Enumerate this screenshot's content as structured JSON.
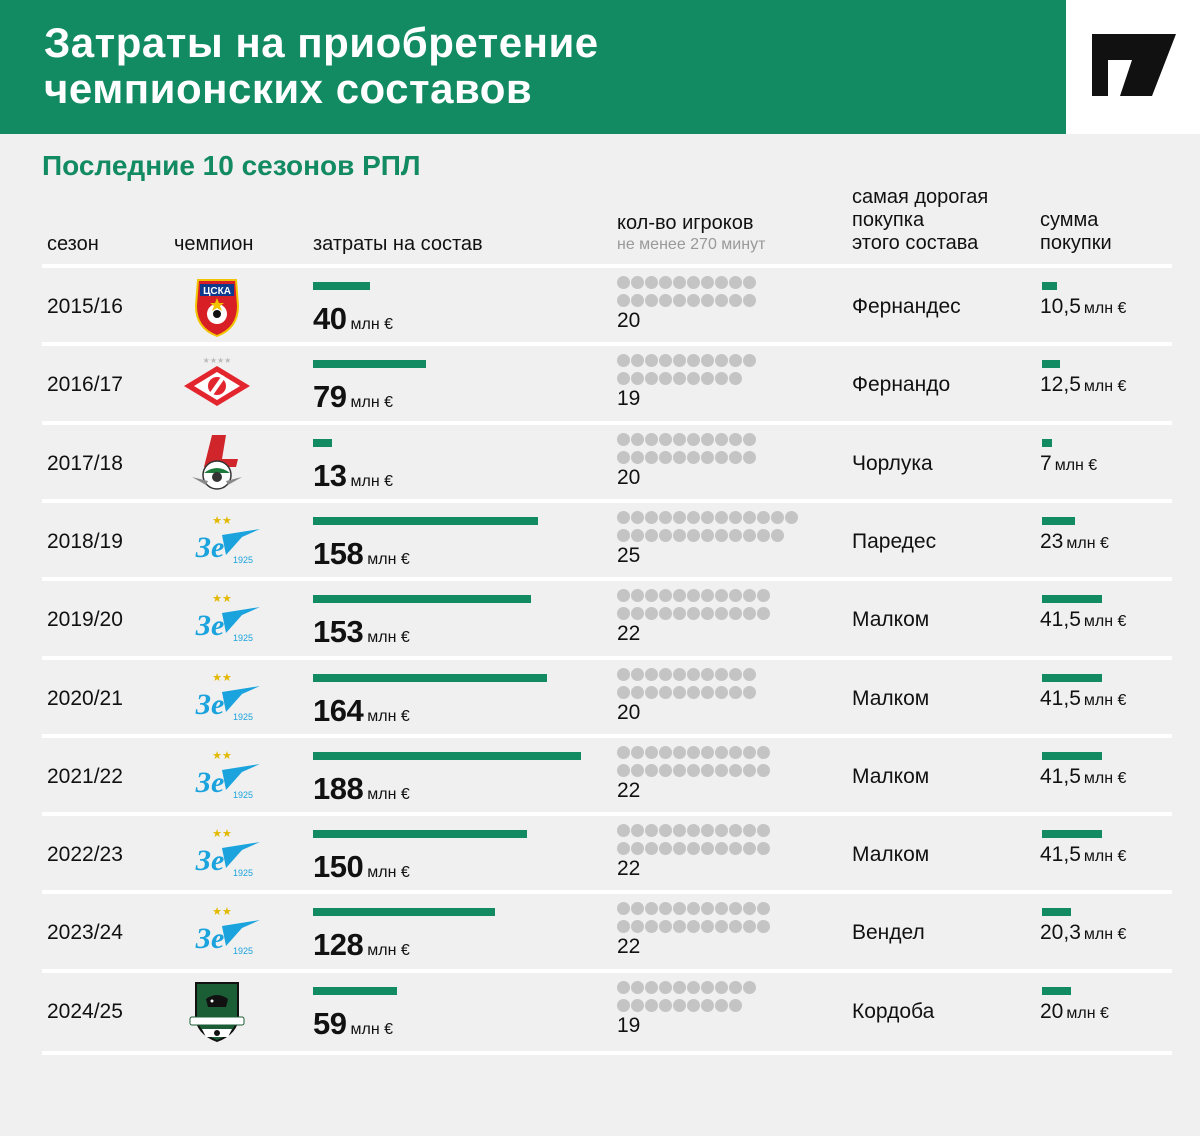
{
  "header": {
    "title_line1": "Затраты на приобретение",
    "title_line2": "чемпионских составов",
    "subtitle": "Последние 10 сезонов РПЛ"
  },
  "columns": {
    "season": "сезон",
    "champion": "чемпион",
    "spend": "затраты на состав",
    "players": "кол-во игроков",
    "players_note": "не менее 270 минут",
    "top_line1": "самая дорогая",
    "top_line2": "покупка",
    "top_line3": "этого состава",
    "sum_line1": "сумма",
    "sum_line2": "покупки"
  },
  "chart_data": {
    "type": "table",
    "unit": "млн €",
    "rows": [
      {
        "season": "2015/16",
        "champion_logo": "cska-logo",
        "spend": 40,
        "spend_label": "40",
        "players": 20,
        "top_name": "Фернандес",
        "top_sum": 10.5,
        "top_sum_label": "10,5"
      },
      {
        "season": "2016/17",
        "champion_logo": "spartak-logo",
        "spend": 79,
        "spend_label": "79",
        "players": 19,
        "top_name": "Фернандо",
        "top_sum": 12.5,
        "top_sum_label": "12,5"
      },
      {
        "season": "2017/18",
        "champion_logo": "lokomotiv-logo",
        "spend": 13,
        "spend_label": "13",
        "players": 20,
        "top_name": "Чорлука",
        "top_sum": 7,
        "top_sum_label": "7"
      },
      {
        "season": "2018/19",
        "champion_logo": "zenit-logo",
        "spend": 158,
        "spend_label": "158",
        "players": 25,
        "top_name": "Паредес",
        "top_sum": 23,
        "top_sum_label": "23"
      },
      {
        "season": "2019/20",
        "champion_logo": "zenit-logo",
        "spend": 153,
        "spend_label": "153",
        "players": 22,
        "top_name": "Малком",
        "top_sum": 41.5,
        "top_sum_label": "41,5"
      },
      {
        "season": "2020/21",
        "champion_logo": "zenit-logo",
        "spend": 164,
        "spend_label": "164",
        "players": 20,
        "top_name": "Малком",
        "top_sum": 41.5,
        "top_sum_label": "41,5"
      },
      {
        "season": "2021/22",
        "champion_logo": "zenit-logo",
        "spend": 188,
        "spend_label": "188",
        "players": 22,
        "top_name": "Малком",
        "top_sum": 41.5,
        "top_sum_label": "41,5"
      },
      {
        "season": "2022/23",
        "champion_logo": "zenit-logo",
        "spend": 150,
        "spend_label": "150",
        "players": 22,
        "top_name": "Малком",
        "top_sum": 41.5,
        "top_sum_label": "41,5"
      },
      {
        "season": "2023/24",
        "champion_logo": "zenit-logo",
        "spend": 128,
        "spend_label": "128",
        "players": 22,
        "top_name": "Вендел",
        "top_sum": 20.3,
        "top_sum_label": "20,3"
      },
      {
        "season": "2024/25",
        "champion_logo": "krasnodar-logo",
        "spend": 59,
        "spend_label": "59",
        "players": 19,
        "top_name": "Кордоба",
        "top_sum": 20,
        "top_sum_label": "20"
      }
    ]
  },
  "colors": {
    "accent": "#128a62",
    "dot": "#c4c4c4",
    "background": "#f0f0f0"
  }
}
